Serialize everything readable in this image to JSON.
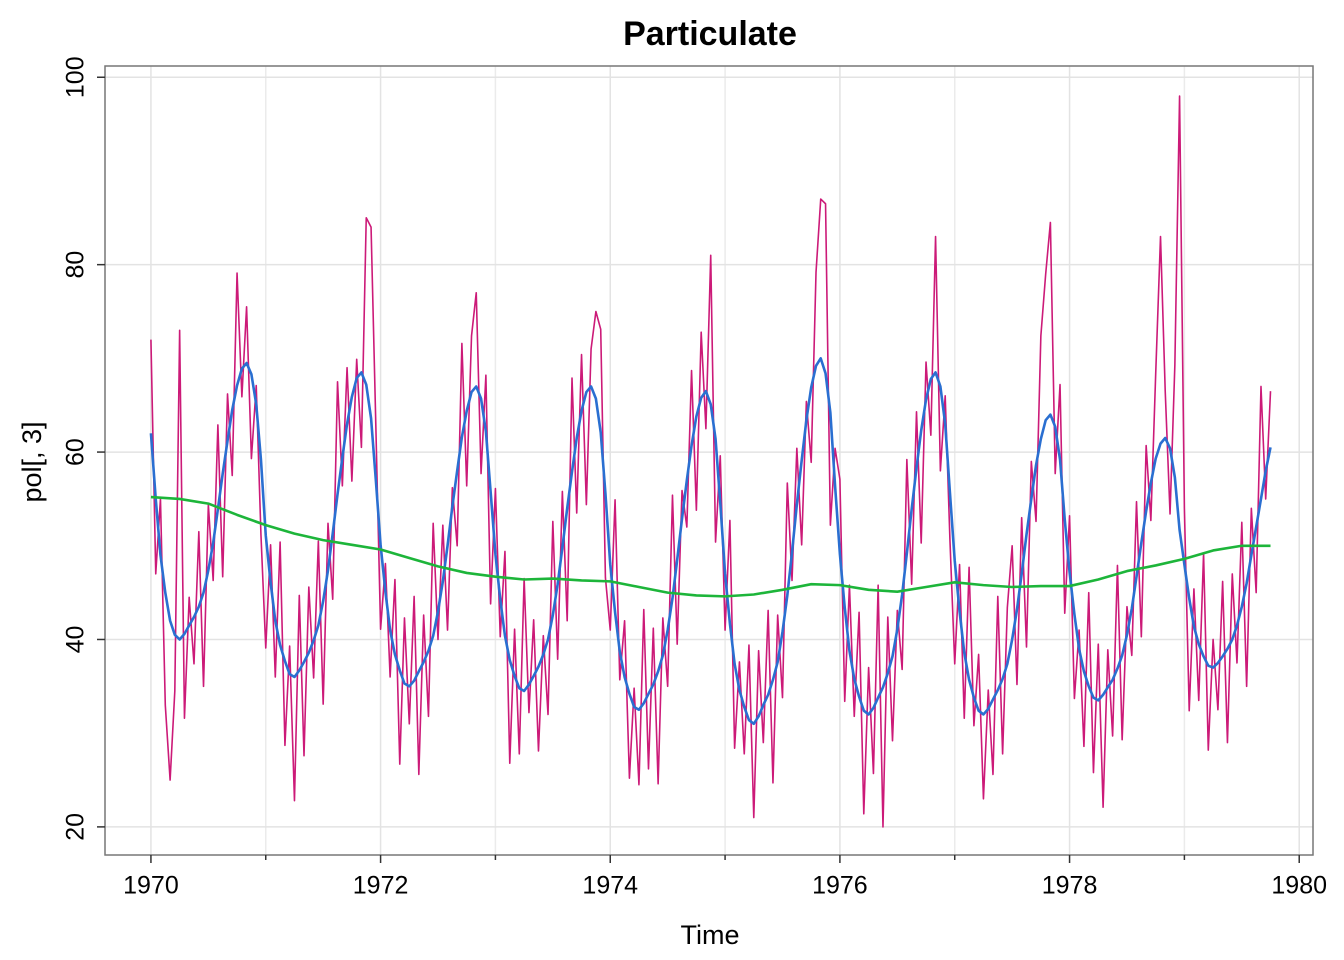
{
  "chart_data": {
    "type": "line",
    "title": "Particulate",
    "x_label": "Time",
    "y_label": "pol[, 3]",
    "xlim": [
      1969.6,
      1980.12
    ],
    "ylim": [
      17.0,
      101.2
    ],
    "xticks": [
      1970,
      1972,
      1974,
      1976,
      1978,
      1980
    ],
    "x_minor_ticks": [
      1971,
      1973,
      1975,
      1977,
      1979
    ],
    "yticks": [
      20,
      40,
      60,
      80,
      100
    ],
    "grid": true,
    "x": [
      1970,
      1970.042,
      1970.083,
      1970.125,
      1970.167,
      1970.208,
      1970.25,
      1970.292,
      1970.333,
      1970.375,
      1970.417,
      1970.458,
      1970.5,
      1970.542,
      1970.583,
      1970.625,
      1970.667,
      1970.708,
      1970.75,
      1970.792,
      1970.833,
      1970.875,
      1970.917,
      1970.958,
      1971,
      1971.042,
      1971.083,
      1971.125,
      1971.167,
      1971.208,
      1971.25,
      1971.292,
      1971.333,
      1971.375,
      1971.417,
      1971.458,
      1971.5,
      1971.542,
      1971.583,
      1971.625,
      1971.667,
      1971.708,
      1971.75,
      1971.792,
      1971.833,
      1971.875,
      1971.917,
      1971.958,
      1972,
      1972.042,
      1972.083,
      1972.125,
      1972.167,
      1972.208,
      1972.25,
      1972.292,
      1972.333,
      1972.375,
      1972.417,
      1972.458,
      1972.5,
      1972.542,
      1972.583,
      1972.625,
      1972.667,
      1972.708,
      1972.75,
      1972.792,
      1972.833,
      1972.875,
      1972.917,
      1972.958,
      1973,
      1973.042,
      1973.083,
      1973.125,
      1973.167,
      1973.208,
      1973.25,
      1973.292,
      1973.333,
      1973.375,
      1973.417,
      1973.458,
      1973.5,
      1973.542,
      1973.583,
      1973.625,
      1973.667,
      1973.708,
      1973.75,
      1973.792,
      1973.833,
      1973.875,
      1973.917,
      1973.958,
      1974,
      1974.042,
      1974.083,
      1974.125,
      1974.167,
      1974.208,
      1974.25,
      1974.292,
      1974.333,
      1974.375,
      1974.417,
      1974.458,
      1974.5,
      1974.542,
      1974.583,
      1974.625,
      1974.667,
      1974.708,
      1974.75,
      1974.792,
      1974.833,
      1974.875,
      1974.917,
      1974.958,
      1975,
      1975.042,
      1975.083,
      1975.125,
      1975.167,
      1975.208,
      1975.25,
      1975.292,
      1975.333,
      1975.375,
      1975.417,
      1975.458,
      1975.5,
      1975.542,
      1975.583,
      1975.625,
      1975.667,
      1975.708,
      1975.75,
      1975.792,
      1975.833,
      1975.875,
      1975.917,
      1975.958,
      1976,
      1976.042,
      1976.083,
      1976.125,
      1976.167,
      1976.208,
      1976.25,
      1976.292,
      1976.333,
      1976.375,
      1976.417,
      1976.458,
      1976.5,
      1976.542,
      1976.583,
      1976.625,
      1976.667,
      1976.708,
      1976.75,
      1976.792,
      1976.833,
      1976.875,
      1976.917,
      1976.958,
      1977,
      1977.042,
      1977.083,
      1977.125,
      1977.167,
      1977.208,
      1977.25,
      1977.292,
      1977.333,
      1977.375,
      1977.417,
      1977.458,
      1977.5,
      1977.542,
      1977.583,
      1977.625,
      1977.667,
      1977.708,
      1977.75,
      1977.792,
      1977.833,
      1977.875,
      1977.917,
      1977.958,
      1978,
      1978.042,
      1978.083,
      1978.125,
      1978.167,
      1978.208,
      1978.25,
      1978.292,
      1978.333,
      1978.375,
      1978.417,
      1978.458,
      1978.5,
      1978.542,
      1978.583,
      1978.625,
      1978.667,
      1978.708,
      1978.75,
      1978.792,
      1978.833,
      1978.875,
      1978.917,
      1978.958,
      1979,
      1979.042,
      1979.083,
      1979.125,
      1979.167,
      1979.208,
      1979.25,
      1979.292,
      1979.333,
      1979.375,
      1979.417,
      1979.458,
      1979.5,
      1979.542,
      1979.583,
      1979.625,
      1979.667,
      1979.708,
      1979.75
    ],
    "series": [
      {
        "color": "#cc1a78",
        "width": 1.6,
        "values": [
          72,
          47,
          55,
          33,
          25,
          34.5,
          73,
          31.6,
          44.5,
          37.4,
          51.5,
          35,
          54.4,
          46.3,
          62.9,
          46.7,
          66.2,
          57.5,
          79.1,
          65.9,
          75.5,
          59.3,
          67.1,
          51.2,
          39.1,
          50.1,
          36,
          50.4,
          28.7,
          39.3,
          22.8,
          44.7,
          27.6,
          45.6,
          35.9,
          50.5,
          33.1,
          52.4,
          44.3,
          67.5,
          56.4,
          69,
          56.9,
          69.9,
          60.5,
          85,
          84,
          63.1,
          41.1,
          48.1,
          36,
          46.4,
          26.7,
          42.3,
          31,
          44.6,
          25.6,
          42.6,
          31.8,
          52.4,
          40,
          52.2,
          41,
          56.2,
          50,
          71.6,
          56.4,
          72.4,
          77,
          57.7,
          68.2,
          43.8,
          56.1,
          40.3,
          49.4,
          26.8,
          41.1,
          27.8,
          46.5,
          32.2,
          42.1,
          28.1,
          40.4,
          32,
          52.6,
          37.9,
          55.8,
          42,
          67.9,
          53.5,
          70.4,
          54.4,
          71,
          75,
          73.1,
          46.6,
          41,
          54.9,
          35.7,
          42,
          25.2,
          34.8,
          24.5,
          43.2,
          26.2,
          41.2,
          24.6,
          42.3,
          35,
          55.4,
          39.5,
          55.9,
          52,
          68.7,
          53.8,
          72.8,
          62.5,
          81,
          50.4,
          59.6,
          41,
          52.7,
          28.4,
          37.6,
          27.8,
          39.4,
          21,
          38.8,
          29,
          43.1,
          24.7,
          42.6,
          33.8,
          56.7,
          46.3,
          60.4,
          50.1,
          65.4,
          58.9,
          79.2,
          87,
          86.5,
          52.2,
          60.4,
          57.1,
          33.4,
          45.8,
          31.8,
          42.9,
          21.4,
          37,
          25.7,
          45.8,
          20,
          42.4,
          29.2,
          43.1,
          36.8,
          59.2,
          45.9,
          64.3,
          50.3,
          69.6,
          61.8,
          83,
          58,
          66,
          50.7,
          37.4,
          48,
          31.6,
          47.7,
          30.8,
          38.4,
          23,
          34.6,
          25.6,
          44.6,
          27.8,
          43.4,
          50,
          35.2,
          53,
          39.2,
          59,
          52.6,
          72.4,
          79,
          84.5,
          57.7,
          67.2,
          42.8,
          53.2,
          33.7,
          41,
          28.6,
          45,
          25.8,
          39.5,
          22.1,
          38.9,
          29.7,
          47.9,
          29.3,
          43.5,
          38.3,
          54.7,
          40.3,
          60.7,
          52.7,
          68.3,
          83,
          66.5,
          53.4,
          69.3,
          98,
          54,
          32.4,
          45.4,
          33.5,
          49.2,
          28.2,
          40,
          32.5,
          46.2,
          29,
          47,
          37.5,
          52.5,
          35,
          54,
          45,
          67,
          55,
          66.5
        ]
      },
      {
        "color": "#2a6fd1",
        "width": 2.6,
        "values": [
          62,
          55,
          49,
          45,
          42,
          40.5,
          40,
          40.6,
          41.5,
          42.4,
          43.5,
          45,
          47.4,
          50.3,
          53.9,
          57.7,
          61.2,
          64.5,
          67.1,
          68.9,
          69.5,
          68.3,
          65.1,
          59.2,
          51.1,
          46.1,
          42,
          39.4,
          37.7,
          36.3,
          36,
          36.7,
          37.6,
          38.6,
          39.9,
          41.5,
          44.1,
          47.4,
          51.3,
          55.5,
          59.4,
          63,
          65.9,
          67.9,
          68.5,
          67.2,
          63.6,
          57.1,
          50.1,
          45.1,
          41,
          38.4,
          36.7,
          35.3,
          35,
          35.6,
          36.6,
          37.6,
          38.8,
          40.4,
          43,
          46.2,
          50,
          54.2,
          58,
          61.6,
          64.4,
          66.4,
          67,
          65.7,
          62.2,
          55.8,
          49.1,
          44.3,
          40.4,
          37.8,
          36.1,
          34.8,
          34.5,
          35.2,
          36.1,
          37.1,
          38.4,
          40,
          42.6,
          45.9,
          49.8,
          54,
          57.9,
          61.5,
          64.4,
          66.4,
          67,
          65.7,
          62.1,
          55.6,
          48,
          42.9,
          38.7,
          36,
          34.2,
          32.8,
          32.5,
          33.2,
          34.2,
          35.2,
          36.6,
          38.3,
          41,
          44.4,
          48.5,
          52.9,
          57,
          60.7,
          63.8,
          65.8,
          66.5,
          65.1,
          61.4,
          54.6,
          47,
          41.7,
          37.4,
          34.6,
          32.8,
          31.4,
          31,
          31.8,
          33,
          34.1,
          35.7,
          37.6,
          40.8,
          44.7,
          49.3,
          54.4,
          59.1,
          63.4,
          66.9,
          69.2,
          70,
          68.4,
          64.2,
          56.4,
          49.1,
          43.4,
          38.8,
          35.8,
          33.9,
          32.4,
          32,
          32.7,
          33.8,
          34.9,
          36.4,
          38.2,
          41.1,
          44.8,
          49.2,
          53.9,
          58.3,
          62.3,
          65.6,
          67.8,
          68.5,
          67,
          63,
          55.7,
          48.4,
          43,
          38.6,
          35.7,
          33.8,
          32.4,
          32,
          32.6,
          33.6,
          34.6,
          35.8,
          37.4,
          40,
          43.2,
          47,
          51.2,
          55,
          58.6,
          61.4,
          63.4,
          64,
          62.7,
          59.2,
          52.8,
          47.2,
          42.7,
          39,
          36.6,
          35,
          33.8,
          33.5,
          34.1,
          34.9,
          35.7,
          36.9,
          38.3,
          40.5,
          43.3,
          46.7,
          50.3,
          53.7,
          56.7,
          59.3,
          60.9,
          61.5,
          60.4,
          57.3,
          51.7,
          48,
          44.4,
          41.4,
          39.5,
          38.2,
          37.2,
          37,
          37.5,
          38.2,
          39,
          40,
          41.5,
          43.5,
          46,
          49,
          52,
          55,
          58,
          60.5
        ]
      },
      {
        "color": "#1db53a",
        "width": 2.6,
        "x": [
          1970,
          1970.25,
          1970.5,
          1970.75,
          1971,
          1971.25,
          1971.5,
          1971.75,
          1972,
          1972.25,
          1972.5,
          1972.75,
          1973,
          1973.25,
          1973.5,
          1973.75,
          1974,
          1974.25,
          1974.5,
          1974.75,
          1975,
          1975.25,
          1975.5,
          1975.75,
          1976,
          1976.25,
          1976.5,
          1976.75,
          1977,
          1977.25,
          1977.5,
          1977.75,
          1978,
          1978.25,
          1978.5,
          1978.75,
          1979,
          1979.25,
          1979.5,
          1979.75
        ],
        "values": [
          55.2,
          55.0,
          54.5,
          53.3,
          52.2,
          51.3,
          50.6,
          50.1,
          49.6,
          48.7,
          47.8,
          47.1,
          46.7,
          46.4,
          46.5,
          46.3,
          46.2,
          45.6,
          45.0,
          44.7,
          44.6,
          44.8,
          45.3,
          45.9,
          45.8,
          45.3,
          45.1,
          45.6,
          46.1,
          45.8,
          45.6,
          45.7,
          45.7,
          46.4,
          47.3,
          47.9,
          48.6,
          49.5,
          50.0,
          50.0
        ]
      }
    ]
  }
}
